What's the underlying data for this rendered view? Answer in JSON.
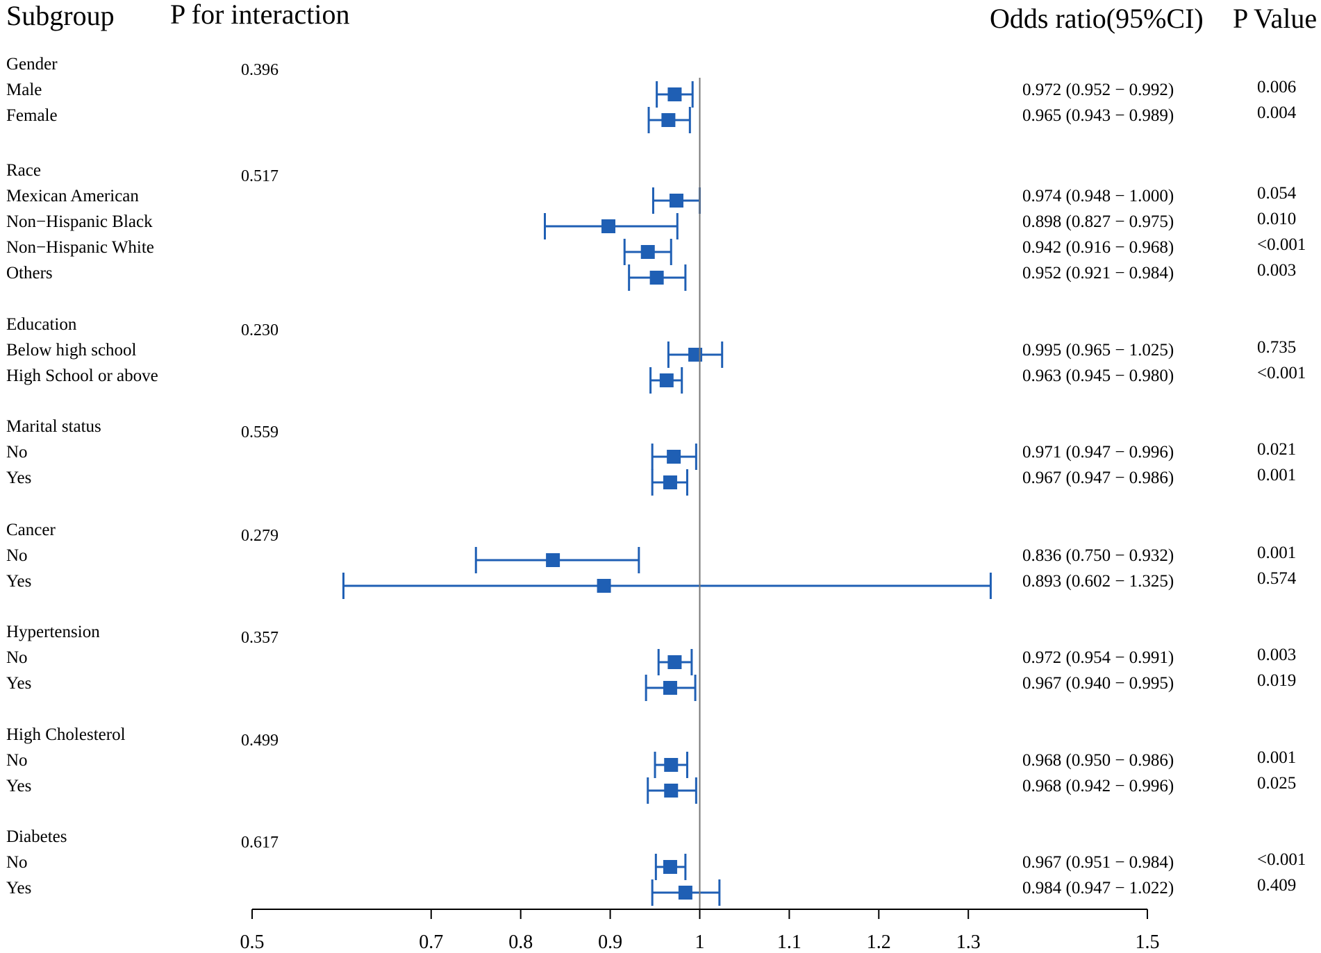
{
  "chart_data": {
    "type": "forest",
    "headers": {
      "subgroup": "Subgroup",
      "p_interaction": "P for interaction",
      "odds_ratio": "Odds ratio(95%CI)",
      "p_value": "P Value"
    },
    "reference_line": 1,
    "axis": {
      "min": 0.5,
      "max": 1.5,
      "ticks": [
        0.5,
        0.7,
        0.8,
        0.9,
        1.0,
        1.1,
        1.2,
        1.3,
        1.5
      ],
      "tick_labels": [
        "0.5",
        "0.7",
        "0.8",
        "0.9",
        "1",
        "1.1",
        "1.2",
        "1.3",
        "1.5"
      ]
    },
    "groups": [
      {
        "name": "Gender",
        "p_interaction": "0.396",
        "rows": [
          {
            "label": "Male",
            "or": 0.972,
            "lo": 0.952,
            "hi": 0.992,
            "ci_text": "0.972 (0.952 − 0.992)",
            "p": "0.006"
          },
          {
            "label": "Female",
            "or": 0.965,
            "lo": 0.943,
            "hi": 0.989,
            "ci_text": "0.965 (0.943 − 0.989)",
            "p": "0.004"
          }
        ]
      },
      {
        "name": "Race",
        "p_interaction": "0.517",
        "rows": [
          {
            "label": "Mexican American",
            "or": 0.974,
            "lo": 0.948,
            "hi": 1.0,
            "ci_text": "0.974 (0.948 − 1.000)",
            "p": "0.054"
          },
          {
            "label": "Non−Hispanic Black",
            "or": 0.898,
            "lo": 0.827,
            "hi": 0.975,
            "ci_text": "0.898 (0.827 − 0.975)",
            "p": "0.010"
          },
          {
            "label": "Non−Hispanic White",
            "or": 0.942,
            "lo": 0.916,
            "hi": 0.968,
            "ci_text": "0.942 (0.916 − 0.968)",
            "p": "<0.001"
          },
          {
            "label": "Others",
            "or": 0.952,
            "lo": 0.921,
            "hi": 0.984,
            "ci_text": "0.952 (0.921 − 0.984)",
            "p": "0.003"
          }
        ]
      },
      {
        "name": "Education",
        "p_interaction": "0.230",
        "rows": [
          {
            "label": "Below high school",
            "or": 0.995,
            "lo": 0.965,
            "hi": 1.025,
            "ci_text": "0.995 (0.965 − 1.025)",
            "p": "0.735"
          },
          {
            "label": "High School or above",
            "or": 0.963,
            "lo": 0.945,
            "hi": 0.98,
            "ci_text": "0.963 (0.945 − 0.980)",
            "p": "<0.001"
          }
        ]
      },
      {
        "name": "Marital status",
        "p_interaction": "0.559",
        "rows": [
          {
            "label": "No",
            "or": 0.971,
            "lo": 0.947,
            "hi": 0.996,
            "ci_text": "0.971 (0.947 − 0.996)",
            "p": "0.021"
          },
          {
            "label": "Yes",
            "or": 0.967,
            "lo": 0.947,
            "hi": 0.986,
            "ci_text": "0.967 (0.947 − 0.986)",
            "p": "0.001"
          }
        ]
      },
      {
        "name": "Cancer",
        "p_interaction": "0.279",
        "rows": [
          {
            "label": "No",
            "or": 0.836,
            "lo": 0.75,
            "hi": 0.932,
            "ci_text": "0.836 (0.750 − 0.932)",
            "p": "0.001"
          },
          {
            "label": "Yes",
            "or": 0.893,
            "lo": 0.602,
            "hi": 1.325,
            "ci_text": "0.893 (0.602 − 1.325)",
            "p": "0.574"
          }
        ]
      },
      {
        "name": "Hypertension",
        "p_interaction": "0.357",
        "rows": [
          {
            "label": "No",
            "or": 0.972,
            "lo": 0.954,
            "hi": 0.991,
            "ci_text": "0.972 (0.954 − 0.991)",
            "p": "0.003"
          },
          {
            "label": "Yes",
            "or": 0.967,
            "lo": 0.94,
            "hi": 0.995,
            "ci_text": "0.967 (0.940 − 0.995)",
            "p": "0.019"
          }
        ]
      },
      {
        "name": "High Cholesterol",
        "p_interaction": "0.499",
        "rows": [
          {
            "label": "No",
            "or": 0.968,
            "lo": 0.95,
            "hi": 0.986,
            "ci_text": "0.968 (0.950 − 0.986)",
            "p": "0.001"
          },
          {
            "label": "Yes",
            "or": 0.968,
            "lo": 0.942,
            "hi": 0.996,
            "ci_text": "0.968 (0.942 − 0.996)",
            "p": "0.025"
          }
        ]
      },
      {
        "name": "Diabetes",
        "p_interaction": "0.617",
        "rows": [
          {
            "label": "No",
            "or": 0.967,
            "lo": 0.951,
            "hi": 0.984,
            "ci_text": "0.967 (0.951 − 0.984)",
            "p": "<0.001"
          },
          {
            "label": "Yes",
            "or": 0.984,
            "lo": 0.947,
            "hi": 1.022,
            "ci_text": "0.984 (0.947 − 1.022)",
            "p": "0.409"
          }
        ]
      }
    ]
  },
  "colors": {
    "marker": "#1f5fb4",
    "reference_line": "#777777",
    "axis": "#000000"
  }
}
